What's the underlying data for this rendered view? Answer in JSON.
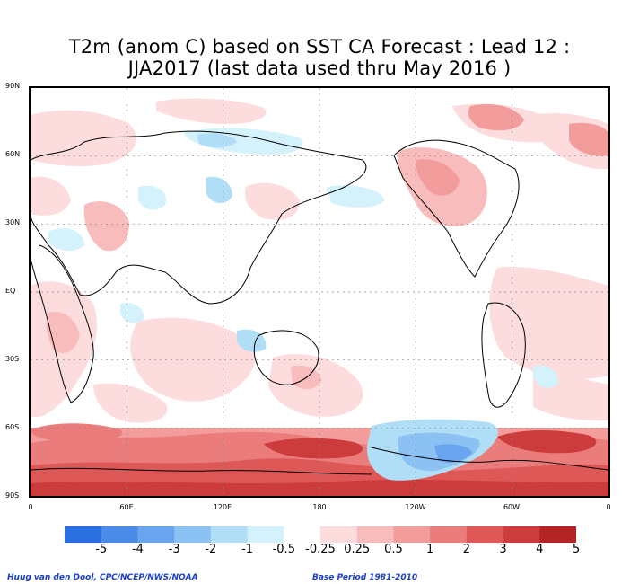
{
  "title": {
    "line1": "T2m (anom C) based on SST CA Forecast : Lead 12 :",
    "line2": "JJA2017 (last data used thru May 2016 )"
  },
  "axes": {
    "lat_labels": [
      "90N",
      "60N",
      "30N",
      "EQ",
      "30S",
      "60S",
      "90S"
    ],
    "lon_labels": [
      "0",
      "60E",
      "120E",
      "180",
      "120W",
      "60W",
      "0"
    ]
  },
  "colorbar": {
    "colors": [
      "#2a6fe0",
      "#4a8be8",
      "#6aa6ef",
      "#8cc2f3",
      "#b0def7",
      "#d4f2fb",
      "#ffffff",
      "#fcdcdc",
      "#f9bcbc",
      "#f39c9c",
      "#ea7c7c",
      "#de5858",
      "#cd3c3c",
      "#b32424"
    ],
    "labels": [
      "-5",
      "-4",
      "-3",
      "-2",
      "-1",
      "-0.5",
      "-0.25",
      "0.25",
      "0.5",
      "1",
      "2",
      "3",
      "4",
      "5"
    ]
  },
  "footer": {
    "credit": "Huug van den Dool, CPC/NCEP/NWS/NOAA",
    "base_period": "Base Period 1981-2010"
  }
}
